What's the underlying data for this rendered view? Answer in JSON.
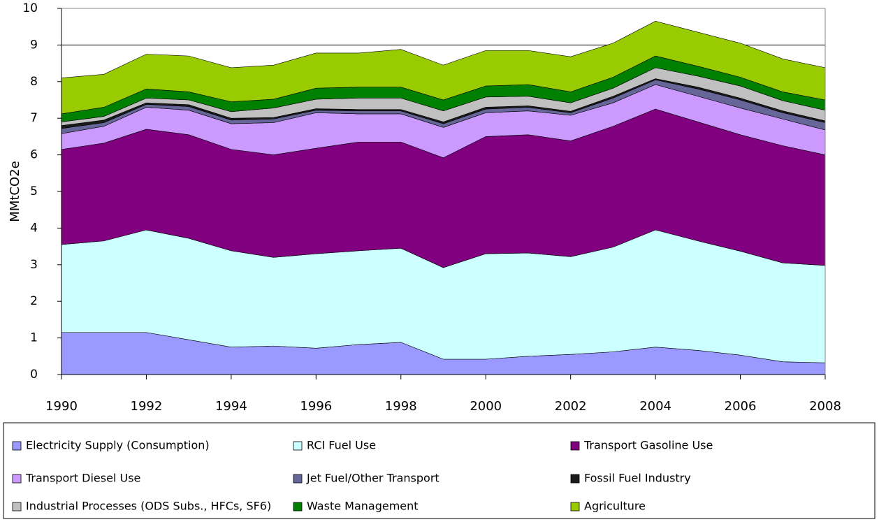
{
  "chart_data": {
    "type": "stacked-area",
    "y_label": "MMtCO2e",
    "x": [
      1990,
      1991,
      1992,
      1993,
      1994,
      1995,
      1996,
      1997,
      1998,
      1999,
      2000,
      2001,
      2002,
      2003,
      2004,
      2005,
      2006,
      2007,
      2008
    ],
    "xlim": [
      1990,
      2008
    ],
    "xticks": [
      1990,
      1992,
      1994,
      1996,
      1998,
      2000,
      2002,
      2004,
      2006,
      2008
    ],
    "ylim": [
      0,
      10
    ],
    "yticks": [
      0,
      1,
      2,
      3,
      4,
      5,
      6,
      7,
      8,
      9,
      10
    ],
    "grid": true,
    "legend": "bottom",
    "series": [
      {
        "name": "Electricity Supply (Consumption)",
        "color": "#9999ff",
        "values": [
          1.15,
          1.15,
          1.15,
          0.95,
          0.75,
          0.78,
          0.72,
          0.82,
          0.88,
          0.42,
          0.42,
          0.5,
          0.55,
          0.62,
          0.75,
          0.66,
          0.53,
          0.35,
          0.32
        ]
      },
      {
        "name": "RCI Fuel Use",
        "color": "#ccffff",
        "values": [
          2.4,
          2.5,
          2.8,
          2.77,
          2.63,
          2.42,
          2.58,
          2.56,
          2.57,
          2.5,
          2.88,
          2.82,
          2.67,
          2.86,
          3.2,
          2.99,
          2.84,
          2.7,
          2.66
        ]
      },
      {
        "name": "Transport Gasoline Use",
        "color": "#800080",
        "values": [
          2.6,
          2.67,
          2.75,
          2.83,
          2.77,
          2.8,
          2.88,
          2.97,
          2.9,
          3.0,
          3.2,
          3.23,
          3.16,
          3.3,
          3.3,
          3.25,
          3.18,
          3.2,
          3.02
        ]
      },
      {
        "name": "Transport Diesel Use",
        "color": "#cc99ff",
        "values": [
          0.43,
          0.46,
          0.6,
          0.67,
          0.7,
          0.88,
          0.97,
          0.77,
          0.77,
          0.83,
          0.65,
          0.65,
          0.7,
          0.64,
          0.67,
          0.7,
          0.73,
          0.73,
          0.68
        ]
      },
      {
        "name": "Jet Fuel/Other Transport",
        "color": "#666699",
        "values": [
          0.14,
          0.1,
          0.08,
          0.1,
          0.1,
          0.1,
          0.07,
          0.08,
          0.08,
          0.1,
          0.1,
          0.1,
          0.07,
          0.13,
          0.13,
          0.2,
          0.22,
          0.17,
          0.2
        ]
      },
      {
        "name": "Fossil Fuel Industry",
        "color": "#1a1a1a",
        "values": [
          0.08,
          0.07,
          0.04,
          0.05,
          0.05,
          0.04,
          0.04,
          0.04,
          0.04,
          0.05,
          0.05,
          0.04,
          0.04,
          0.05,
          0.03,
          0.05,
          0.05,
          0.05,
          0.05
        ]
      },
      {
        "name": "Industrial Processes (ODS Subs., HFCs, SF6)",
        "color": "#c0c0c0",
        "values": [
          0.1,
          0.1,
          0.13,
          0.13,
          0.18,
          0.26,
          0.26,
          0.31,
          0.31,
          0.3,
          0.28,
          0.26,
          0.23,
          0.22,
          0.3,
          0.3,
          0.33,
          0.28,
          0.29
        ]
      },
      {
        "name": "Waste Management",
        "color": "#008000",
        "values": [
          0.22,
          0.25,
          0.25,
          0.22,
          0.27,
          0.24,
          0.3,
          0.3,
          0.3,
          0.3,
          0.3,
          0.32,
          0.3,
          0.3,
          0.32,
          0.27,
          0.24,
          0.24,
          0.28
        ]
      },
      {
        "name": "Agriculture",
        "color": "#99cc00",
        "values": [
          0.98,
          0.9,
          0.95,
          0.98,
          0.93,
          0.93,
          0.96,
          0.93,
          1.03,
          0.95,
          0.97,
          0.93,
          0.96,
          0.93,
          0.95,
          0.93,
          0.93,
          0.9,
          0.88
        ]
      }
    ]
  }
}
